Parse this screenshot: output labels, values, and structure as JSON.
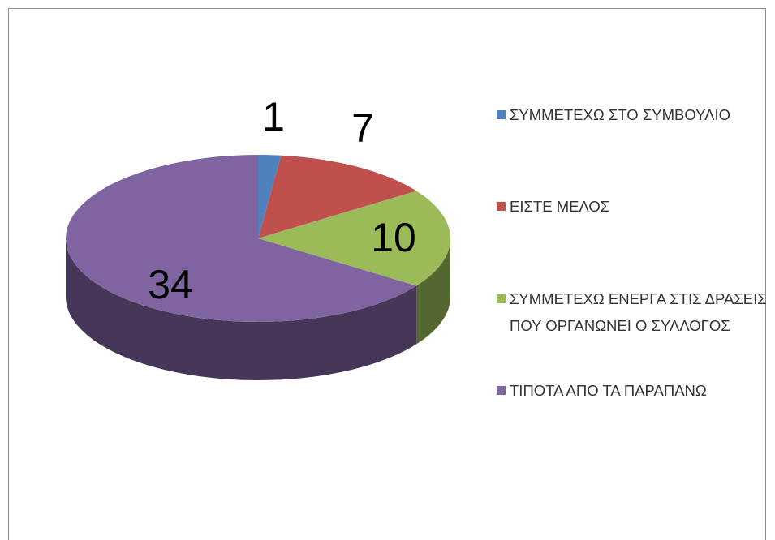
{
  "chart_data": {
    "type": "pie",
    "three_d": true,
    "categories": [
      "ΣΥΜΜΕΤΕΧΩ ΣΤΟ ΣΥΜΒΟΥΛΙΟ",
      "ΕΙΣΤΕ ΜΕΛΟΣ",
      "ΣΥΜΜΕΤΕΧΩ ΕΝΕΡΓΑ ΣΤΙΣ ΔΡΑΣΕΙΣ ΠΟΥ ΟΡΓΑΝΩΝΕΙ Ο ΣΥΛΛΟΓΟΣ",
      "ΤΙΠΟΤΑ ΑΠΟ ΤΑ ΠΑΡΑΠΑΝΩ"
    ],
    "values": [
      1,
      7,
      10,
      34
    ],
    "colors": [
      "#4f81bd",
      "#c0504d",
      "#9bbb59",
      "#8064a2"
    ],
    "legend": "right"
  }
}
